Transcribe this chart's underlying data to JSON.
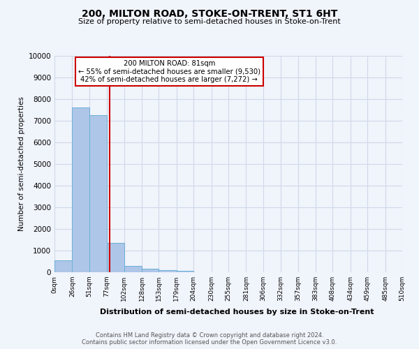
{
  "title": "200, MILTON ROAD, STOKE-ON-TRENT, ST1 6HT",
  "subtitle": "Size of property relative to semi-detached houses in Stoke-on-Trent",
  "xlabel": "Distribution of semi-detached houses by size in Stoke-on-Trent",
  "ylabel": "Number of semi-detached properties",
  "footer_line1": "Contains HM Land Registry data © Crown copyright and database right 2024.",
  "footer_line2": "Contains public sector information licensed under the Open Government Licence v3.0.",
  "bar_edges": [
    0,
    26,
    51,
    77,
    102,
    128,
    153,
    179,
    204,
    230,
    255,
    281,
    306,
    332,
    357,
    383,
    408,
    434,
    459,
    485,
    510
  ],
  "bar_heights": [
    560,
    7620,
    7270,
    1360,
    290,
    155,
    90,
    60,
    0,
    0,
    0,
    0,
    0,
    0,
    0,
    0,
    0,
    0,
    0,
    0
  ],
  "bar_color": "#aec6e8",
  "bar_edge_color": "#6aafd6",
  "property_size": 81,
  "pct_smaller": 55,
  "n_smaller": 9530,
  "pct_larger": 42,
  "n_larger": 7272,
  "vline_color": "#cc0000",
  "annotation_box_color": "#ffffff",
  "annotation_box_edge": "#cc0000",
  "ylim": [
    0,
    10000
  ],
  "yticks": [
    0,
    1000,
    2000,
    3000,
    4000,
    5000,
    6000,
    7000,
    8000,
    9000,
    10000
  ],
  "xtick_labels": [
    "0sqm",
    "26sqm",
    "51sqm",
    "77sqm",
    "102sqm",
    "128sqm",
    "153sqm",
    "179sqm",
    "204sqm",
    "230sqm",
    "255sqm",
    "281sqm",
    "306sqm",
    "332sqm",
    "357sqm",
    "383sqm",
    "408sqm",
    "434sqm",
    "459sqm",
    "485sqm",
    "510sqm"
  ],
  "grid_color": "#d0d8e8",
  "bg_color": "#f0f4fb"
}
